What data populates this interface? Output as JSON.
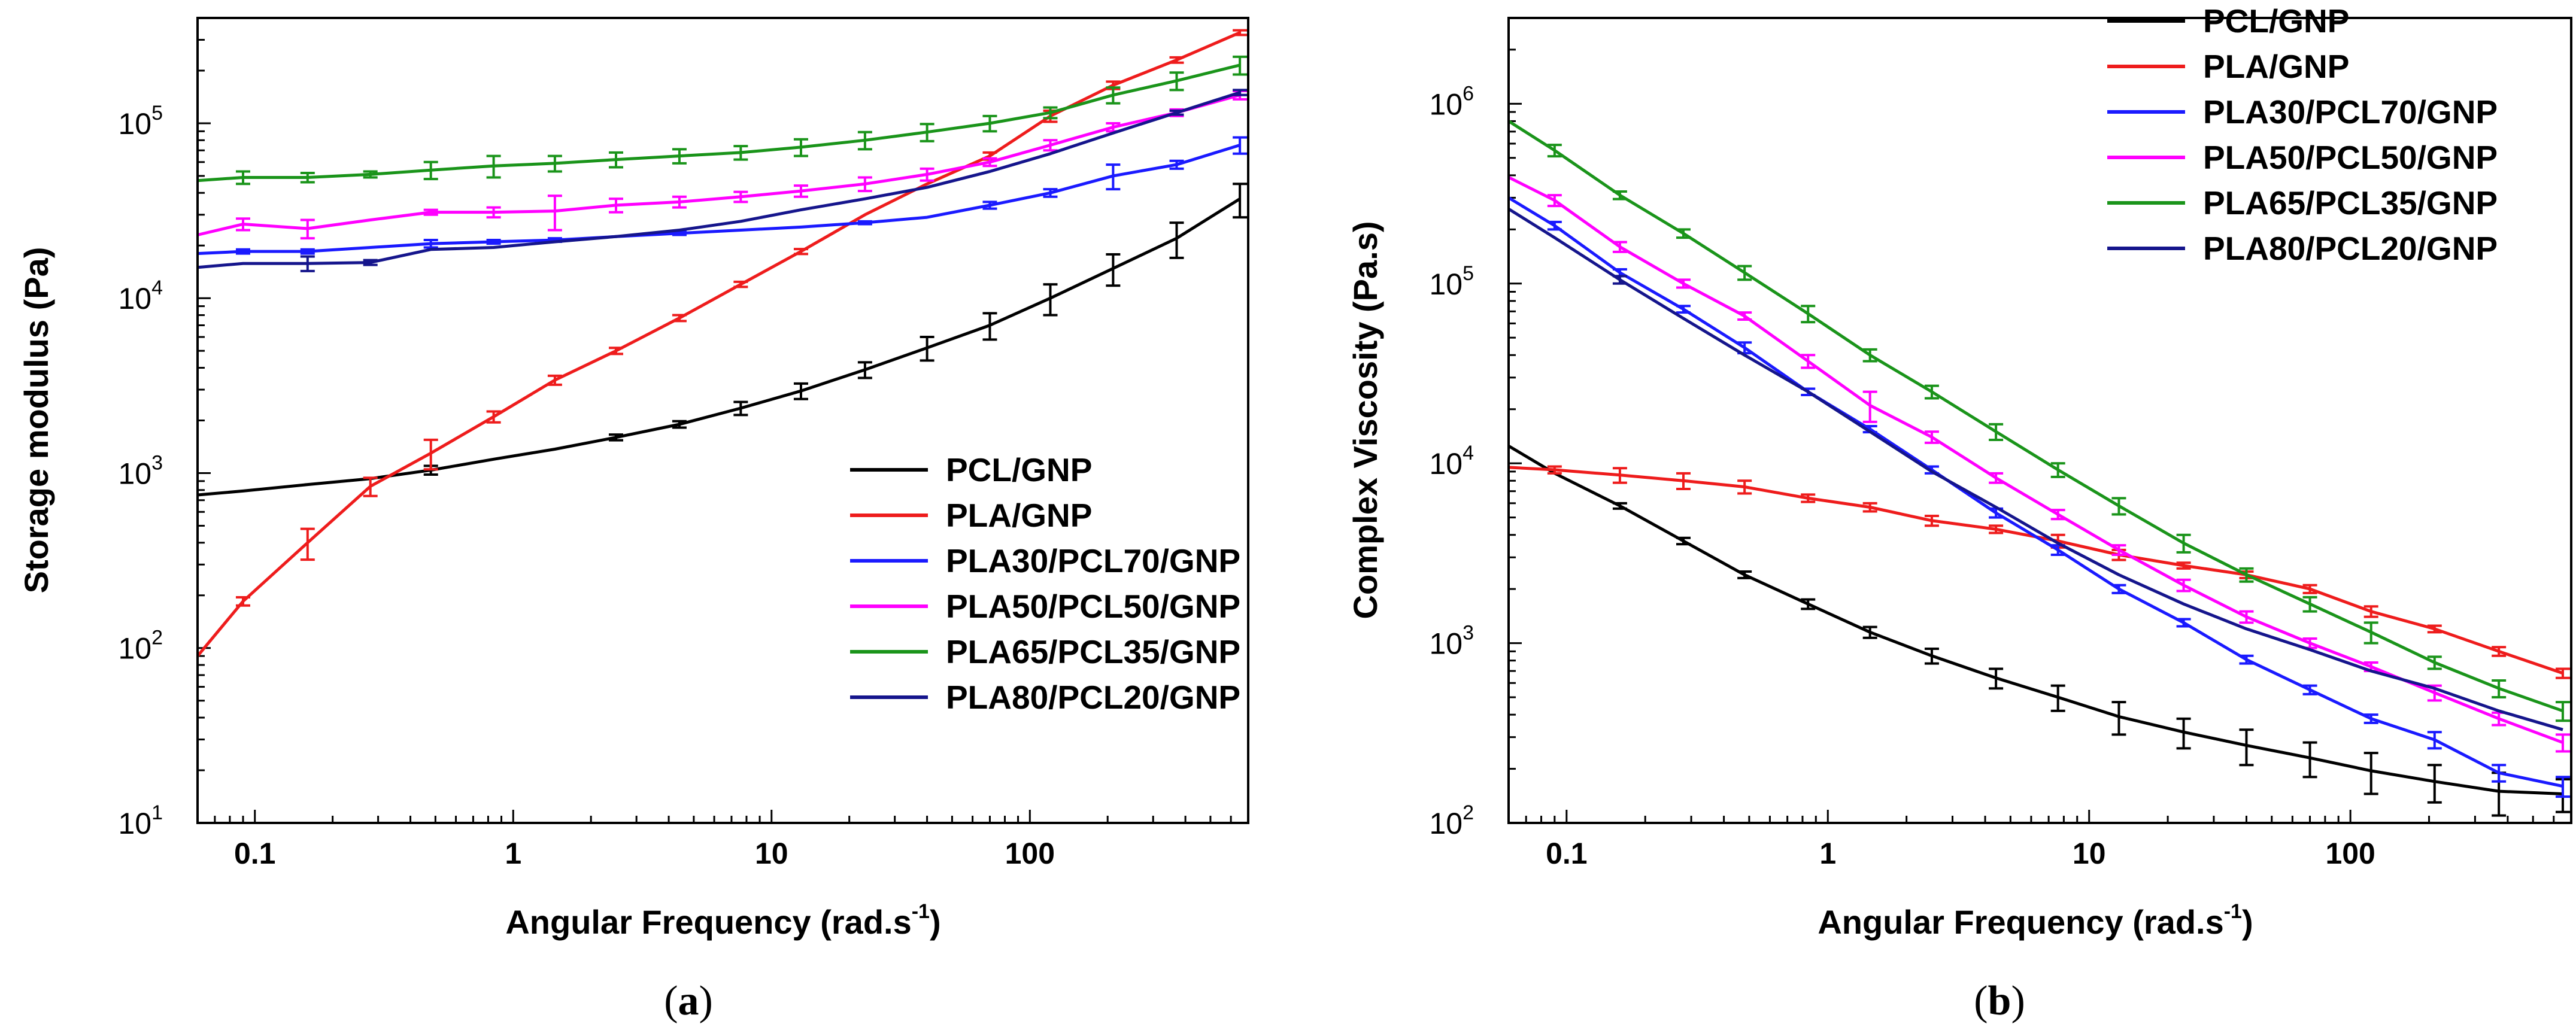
{
  "colors": {
    "PCL/GNP": "#000000",
    "PLA/GNP": "#ee1c1c",
    "PLA30/PCL70/GNP": "#1a1aff",
    "PLA50/PCL50/GNP": "#ff00ff",
    "PLA65/PCL35/GNP": "#1a941a",
    "PLA80/PCL20/GNP": "#15158c"
  },
  "panels": [
    {
      "label_prefix": "(",
      "label_letter": "a",
      "label_suffix": ")",
      "legend_position": "center-right",
      "x_axis_main": "Angular Frequency (rad.s",
      "x_axis_sup": "-1",
      "x_axis_end": ")"
    },
    {
      "label_prefix": "(",
      "label_letter": "b",
      "label_suffix": ")",
      "legend_position": "top-right",
      "x_axis_main": "Angular Frequency (rad.s",
      "x_axis_sup": "-1",
      "x_axis_end": ")"
    }
  ],
  "chart_data": [
    {
      "type": "line",
      "title": "",
      "xlabel": "Angular Frequency (rad.s-1)",
      "ylabel": "Storage modulus (Pa)",
      "xscale": "log",
      "yscale": "log",
      "xlim": [
        0.06,
        700
      ],
      "ylim": [
        10,
        400000
      ],
      "x_ticks": [
        {
          "value": 0.1,
          "label": "0.1"
        },
        {
          "value": 1,
          "label": "1"
        },
        {
          "value": 10,
          "label": "10"
        },
        {
          "value": 100,
          "label": "100"
        }
      ],
      "y_ticks": [
        {
          "value": 10,
          "base": "10",
          "exp": "1"
        },
        {
          "value": 100,
          "base": "10",
          "exp": "2"
        },
        {
          "value": 1000,
          "base": "10",
          "exp": "3"
        },
        {
          "value": 10000,
          "base": "10",
          "exp": "4"
        },
        {
          "value": 100000,
          "base": "10",
          "exp": "5"
        }
      ],
      "x": [
        0.06,
        0.09,
        0.16,
        0.28,
        0.48,
        0.84,
        1.45,
        2.5,
        4.4,
        7.6,
        13,
        23,
        40,
        70,
        120,
        210,
        370,
        650
      ],
      "series": [
        {
          "name": "PCL/GNP",
          "values": [
            750,
            790,
            860,
            930,
            1040,
            1200,
            1370,
            1600,
            1900,
            2350,
            2950,
            3900,
            5200,
            7000,
            10000,
            14800,
            22000,
            37000
          ],
          "errors": [
            0,
            0,
            0,
            0,
            60,
            0,
            0,
            60,
            80,
            200,
            300,
            400,
            800,
            1200,
            2000,
            3000,
            5000,
            8000
          ]
        },
        {
          "name": "PLA/GNP",
          "values": [
            90,
            185,
            400,
            840,
            1300,
            2100,
            3400,
            5000,
            7700,
            12000,
            18500,
            30000,
            45000,
            65000,
            110000,
            165000,
            230000,
            330000
          ],
          "errors": [
            0,
            10,
            80,
            100,
            250,
            150,
            200,
            200,
            300,
            400,
            600,
            0,
            0,
            3000,
            8000,
            8000,
            8000,
            10000
          ]
        },
        {
          "name": "PLA30/PCL70/GNP",
          "values": [
            18000,
            18500,
            18500,
            19500,
            20500,
            21000,
            21500,
            22500,
            23500,
            24500,
            25500,
            27000,
            29000,
            34000,
            40000,
            50000,
            58000,
            75000
          ],
          "errors": [
            0,
            500,
            500,
            0,
            1000,
            500,
            500,
            0,
            500,
            0,
            0,
            500,
            0,
            1500,
            2000,
            8000,
            3000,
            8000
          ]
        },
        {
          "name": "PLA50/PCL50/GNP",
          "values": [
            23000,
            26500,
            25000,
            28000,
            31000,
            31000,
            31500,
            34000,
            35500,
            38000,
            41000,
            45000,
            51000,
            60000,
            75000,
            95000,
            115000,
            145000
          ],
          "errors": [
            0,
            2000,
            3000,
            0,
            1000,
            2000,
            7000,
            3000,
            2500,
            2500,
            3000,
            4000,
            4000,
            3000,
            5000,
            5000,
            5000,
            8000
          ]
        },
        {
          "name": "PLA65/PCL35/GNP",
          "values": [
            47000,
            49000,
            49000,
            51000,
            54000,
            57000,
            59000,
            62000,
            65000,
            68000,
            73000,
            80000,
            89000,
            100000,
            115000,
            145000,
            175000,
            215000
          ],
          "errors": [
            0,
            4000,
            3000,
            2000,
            6000,
            8000,
            6000,
            6000,
            6000,
            6000,
            8000,
            9000,
            10000,
            10000,
            8000,
            15000,
            20000,
            25000
          ]
        },
        {
          "name": "PLA80/PCL20/GNP",
          "values": [
            15000,
            15800,
            15800,
            16000,
            19000,
            19500,
            21000,
            22500,
            24500,
            27500,
            32000,
            37000,
            43000,
            53000,
            67000,
            88000,
            115000,
            150000
          ],
          "errors": [
            0,
            0,
            1500,
            500,
            0,
            0,
            0,
            0,
            0,
            0,
            0,
            0,
            0,
            0,
            0,
            0,
            3000,
            5000
          ]
        }
      ]
    },
    {
      "type": "line",
      "title": "",
      "xlabel": "Angular Frequency (rad.s-1)",
      "ylabel": "Complex Viscosity (Pa.s)",
      "xscale": "log",
      "yscale": "log",
      "xlim": [
        0.06,
        700
      ],
      "ylim": [
        100,
        3000000
      ],
      "x_ticks": [
        {
          "value": 0.1,
          "label": "0.1"
        },
        {
          "value": 1,
          "label": "1"
        },
        {
          "value": 10,
          "label": "10"
        },
        {
          "value": 100,
          "label": "100"
        }
      ],
      "y_ticks": [
        {
          "value": 100,
          "base": "10",
          "exp": "2"
        },
        {
          "value": 1000,
          "base": "10",
          "exp": "3"
        },
        {
          "value": 10000,
          "base": "10",
          "exp": "4"
        },
        {
          "value": 100000,
          "base": "10",
          "exp": "5"
        },
        {
          "value": 1000000,
          "base": "10",
          "exp": "6"
        }
      ],
      "x": [
        0.06,
        0.09,
        0.16,
        0.28,
        0.48,
        0.84,
        1.45,
        2.5,
        4.4,
        7.6,
        13,
        23,
        40,
        70,
        120,
        210,
        370,
        650
      ],
      "series": [
        {
          "name": "PCL/GNP",
          "values": [
            12500,
            8800,
            5800,
            3700,
            2400,
            1650,
            1150,
            850,
            640,
            500,
            390,
            320,
            270,
            230,
            195,
            170,
            150,
            145
          ],
          "errors": [
            0,
            0,
            200,
            150,
            100,
            100,
            80,
            80,
            80,
            80,
            80,
            60,
            60,
            50,
            50,
            40,
            40,
            30
          ]
        },
        {
          "name": "PLA/GNP",
          "values": [
            9500,
            9200,
            8600,
            8000,
            7400,
            6400,
            5700,
            4800,
            4300,
            3700,
            3100,
            2700,
            2400,
            2000,
            1500,
            1200,
            900,
            680
          ],
          "errors": [
            0,
            400,
            800,
            800,
            600,
            300,
            300,
            300,
            200,
            300,
            200,
            100,
            100,
            100,
            100,
            50,
            50,
            40
          ]
        },
        {
          "name": "PLA30/PCL70/GNP",
          "values": [
            300000,
            210000,
            115000,
            72000,
            44000,
            25000,
            15500,
            9200,
            5300,
            3300,
            2000,
            1300,
            810,
            550,
            380,
            290,
            190,
            160
          ],
          "errors": [
            0,
            10000,
            5000,
            3000,
            3000,
            1000,
            600,
            400,
            300,
            200,
            100,
            60,
            40,
            30,
            20,
            30,
            20,
            20
          ]
        },
        {
          "name": "PLA50/PCL50/GNP",
          "values": [
            390000,
            290000,
            160000,
            100000,
            66000,
            37000,
            21000,
            14000,
            8300,
            5200,
            3300,
            2100,
            1400,
            1000,
            740,
            530,
            380,
            280
          ],
          "errors": [
            0,
            20000,
            10000,
            5000,
            3000,
            3000,
            4000,
            1000,
            500,
            300,
            200,
            150,
            100,
            60,
            40,
            50,
            30,
            30
          ]
        },
        {
          "name": "PLA65/PCL35/GNP",
          "values": [
            800000,
            550000,
            310000,
            190000,
            115000,
            68000,
            40000,
            25000,
            15000,
            9200,
            5800,
            3600,
            2400,
            1650,
            1150,
            780,
            560,
            420
          ],
          "errors": [
            0,
            40000,
            15000,
            10000,
            10000,
            7000,
            3000,
            2000,
            1500,
            800,
            600,
            400,
            200,
            150,
            150,
            60,
            60,
            50
          ]
        },
        {
          "name": "PLA80/PCL20/GNP",
          "values": [
            260000,
            180000,
            105000,
            64000,
            40000,
            25000,
            15000,
            9000,
            5700,
            3600,
            2400,
            1650,
            1200,
            920,
            700,
            560,
            420,
            330
          ],
          "errors": [
            0,
            0,
            5000,
            0,
            0,
            0,
            0,
            0,
            0,
            0,
            0,
            0,
            0,
            0,
            0,
            0,
            0,
            0
          ]
        }
      ]
    }
  ]
}
